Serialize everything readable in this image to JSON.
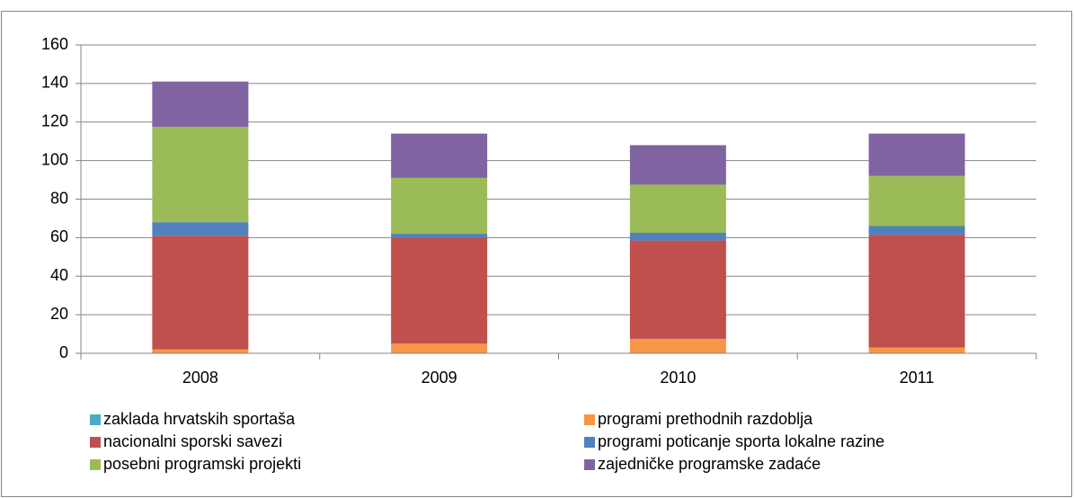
{
  "chart_data": {
    "type": "stacked_bar",
    "categories": [
      "2008",
      "2009",
      "2010",
      "2011"
    ],
    "series": [
      {
        "name": "zaklada hrvatskih sportaša",
        "color": "#4bacc6",
        "values": [
          0,
          0,
          0,
          0
        ]
      },
      {
        "name": "programi prethodnih razdoblja",
        "color": "#f79646",
        "values": [
          2,
          5,
          7.5,
          3
        ]
      },
      {
        "name": "nacionalni sporski savezi",
        "color": "#c0504d",
        "values": [
          59,
          55,
          51,
          58.5
        ]
      },
      {
        "name": "programi poticanje sporta lokalne razine",
        "color": "#4f81bd",
        "values": [
          7,
          2,
          4,
          4.5
        ]
      },
      {
        "name": "posebni programski projekti",
        "color": "#9bbb59",
        "values": [
          49.5,
          29,
          25,
          26
        ]
      },
      {
        "name": "zajedničke programske zadaće",
        "color": "#8064a2",
        "values": [
          23.5,
          23,
          20.5,
          22
        ]
      }
    ],
    "ylim": [
      0,
      160
    ],
    "yticks": [
      0,
      20,
      40,
      60,
      80,
      100,
      120,
      140,
      160
    ],
    "grid": true,
    "legend": "bottom"
  }
}
